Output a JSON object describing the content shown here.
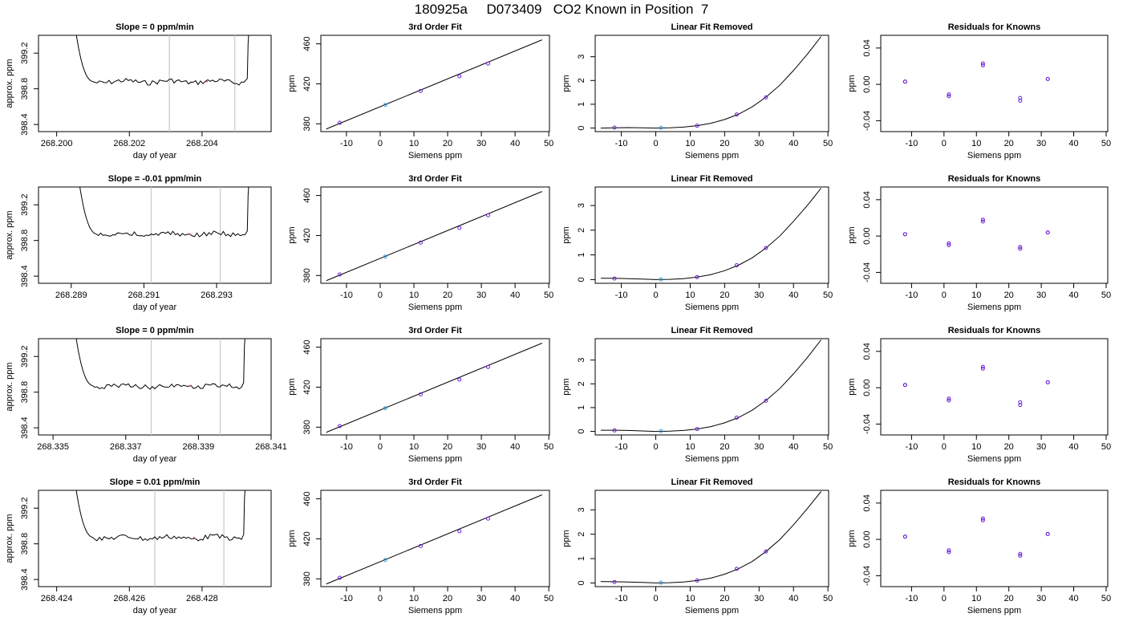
{
  "figure": {
    "title": "180925a     D073409   CO2 Known in Position  7"
  },
  "chart_data": [
    {
      "type": "line",
      "row": 1,
      "col": 1,
      "title": "Slope =  0  ppm/min",
      "xlabel": "day of year",
      "ylabel": "approx. ppm",
      "xlim": [
        268.1995,
        268.2059
      ],
      "ylim": [
        398.32,
        399.4
      ],
      "xticks": [
        "268.200",
        "268.202",
        "268.204"
      ],
      "xtick_values": [
        268.2,
        268.202,
        268.204
      ],
      "yticks": [
        "398.4",
        "398.8",
        "399.2"
      ],
      "ytick_values": [
        398.4,
        398.8,
        399.2
      ],
      "vlines": [
        268.2031,
        268.2049
      ],
      "trace": {
        "x0": 268.201,
        "x1": 268.2052,
        "level": 398.88
      }
    },
    {
      "type": "line",
      "title": "3rd Order Fit",
      "xlabel": "Siemens ppm",
      "ylabel": "ppm",
      "xlim": [
        -17.6,
        50.2
      ],
      "ylim": [
        372.2,
        468.5
      ],
      "xticks": [
        "-10",
        "0",
        "10",
        "20",
        "30",
        "40",
        "50"
      ],
      "xtick_values": [
        -10,
        0,
        10,
        20,
        30,
        40,
        50
      ],
      "yticks": [
        "380",
        "420",
        "460"
      ],
      "ytick_values": [
        380,
        420,
        460
      ],
      "line": {
        "x": [
          -16,
          48
        ],
        "y": [
          374.8,
          464.0
        ]
      },
      "points": {
        "x": [
          -12,
          1.5,
          12,
          23.5,
          32
        ],
        "y": [
          381.0,
          398.9,
          412.8,
          427.6,
          440.2
        ]
      }
    },
    {
      "type": "line",
      "title": "Linear Fit Removed",
      "xlabel": "Siemens ppm",
      "ylabel": "ppm",
      "xlim": [
        -17.6,
        50.2
      ],
      "ylim": [
        -0.15,
        3.9
      ],
      "xticks": [
        "-10",
        "0",
        "10",
        "20",
        "30",
        "40",
        "50"
      ],
      "xtick_values": [
        -10,
        0,
        10,
        20,
        30,
        40,
        50
      ],
      "yticks": [
        "0",
        "1",
        "2",
        "3"
      ],
      "ytick_values": [
        0,
        1,
        2,
        3
      ],
      "curve": {
        "x": [
          -16,
          -12,
          -8,
          -4,
          0,
          4,
          8,
          12,
          16,
          20,
          24,
          28,
          32,
          36,
          40,
          44,
          48
        ],
        "y": [
          0.0,
          0.01,
          0.02,
          0.01,
          0.0,
          0.01,
          0.04,
          0.1,
          0.2,
          0.36,
          0.58,
          0.89,
          1.3,
          1.8,
          2.42,
          3.1,
          3.85
        ]
      },
      "points": {
        "x": [
          -12,
          1.5,
          12,
          23.5,
          32
        ],
        "y": [
          0.02,
          0.01,
          0.1,
          0.57,
          1.29
        ]
      }
    },
    {
      "type": "scatter",
      "title": "Residuals for Knowns",
      "xlabel": "Siemens ppm",
      "ylabel": "ppm",
      "xlim": [
        -19.5,
        50.5
      ],
      "ylim": [
        -0.052,
        0.054
      ],
      "xticks": [
        "-10",
        "0",
        "10",
        "20",
        "30",
        "40",
        "50"
      ],
      "xtick_values": [
        -10,
        0,
        10,
        20,
        30,
        40,
        50
      ],
      "yticks": [
        "-0.04",
        "0.00",
        "0.04"
      ],
      "ytick_values": [
        -0.04,
        0.0,
        0.04
      ],
      "points": {
        "x": [
          -12,
          -12,
          1.5,
          1.5,
          12,
          12,
          23.5,
          23.5,
          32,
          32
        ],
        "y": [
          0.003,
          0.003,
          -0.011,
          -0.013,
          0.021,
          0.023,
          -0.015,
          -0.018,
          0.006,
          0.006
        ]
      }
    },
    {
      "type": "line",
      "row": 2,
      "col": 1,
      "title": "Slope =  -0.01  ppm/min",
      "xlabel": "day of year",
      "ylabel": "approx. ppm",
      "xlim": [
        268.2881,
        268.2945
      ],
      "ylim": [
        398.32,
        399.4
      ],
      "xticks": [
        "268.289",
        "268.291",
        "268.293"
      ],
      "xtick_values": [
        268.289,
        268.291,
        268.293
      ],
      "yticks": [
        "398.4",
        "398.8",
        "399.2"
      ],
      "ytick_values": [
        398.4,
        398.8,
        399.2
      ],
      "vlines": [
        268.2912,
        268.2931
      ],
      "trace": {
        "x0": 268.2897,
        "x1": 268.2938,
        "level": 398.87
      }
    },
    {
      "type": "line",
      "title": "3rd Order Fit",
      "xlabel": "Siemens ppm",
      "ylabel": "ppm",
      "xlim": [
        -17.6,
        50.2
      ],
      "ylim": [
        372.2,
        468.5
      ],
      "xticks": [
        "-10",
        "0",
        "10",
        "20",
        "30",
        "40",
        "50"
      ],
      "xtick_values": [
        -10,
        0,
        10,
        20,
        30,
        40,
        50
      ],
      "yticks": [
        "380",
        "420",
        "460"
      ],
      "ytick_values": [
        380,
        420,
        460
      ],
      "line": {
        "x": [
          -16,
          48
        ],
        "y": [
          374.8,
          464.0
        ]
      },
      "points": {
        "x": [
          -12,
          1.5,
          12,
          23.5,
          32
        ],
        "y": [
          381.0,
          398.9,
          412.8,
          427.6,
          440.2
        ]
      }
    },
    {
      "type": "line",
      "title": "Linear Fit Removed",
      "xlabel": "Siemens ppm",
      "ylabel": "ppm",
      "xlim": [
        -17.6,
        50.2
      ],
      "ylim": [
        -0.15,
        3.75
      ],
      "xticks": [
        "-10",
        "0",
        "10",
        "20",
        "30",
        "40",
        "50"
      ],
      "xtick_values": [
        -10,
        0,
        10,
        20,
        30,
        40,
        50
      ],
      "yticks": [
        "0",
        "1",
        "2",
        "3"
      ],
      "ytick_values": [
        0,
        1,
        2,
        3
      ],
      "curve": {
        "x": [
          -16,
          -12,
          -8,
          -4,
          0,
          4,
          8,
          12,
          16,
          20,
          24,
          28,
          32,
          36,
          40,
          44,
          48
        ],
        "y": [
          0.05,
          0.05,
          0.04,
          0.02,
          0.0,
          0.01,
          0.04,
          0.1,
          0.2,
          0.36,
          0.58,
          0.88,
          1.28,
          1.76,
          2.36,
          3.0,
          3.7
        ]
      },
      "points": {
        "x": [
          -12,
          1.5,
          12,
          23.5,
          32
        ],
        "y": [
          0.04,
          0.01,
          0.1,
          0.58,
          1.28
        ]
      }
    },
    {
      "type": "scatter",
      "title": "Residuals for Knowns",
      "xlabel": "Siemens ppm",
      "ylabel": "ppm",
      "xlim": [
        -19.5,
        50.5
      ],
      "ylim": [
        -0.052,
        0.054
      ],
      "xticks": [
        "-10",
        "0",
        "10",
        "20",
        "30",
        "40",
        "50"
      ],
      "xtick_values": [
        -10,
        0,
        10,
        20,
        30,
        40,
        50
      ],
      "yticks": [
        "-0.04",
        "0.00",
        "0.04"
      ],
      "ytick_values": [
        -0.04,
        0.0,
        0.04
      ],
      "points": {
        "x": [
          -12,
          -12,
          1.5,
          1.5,
          12,
          12,
          23.5,
          23.5,
          32,
          32
        ],
        "y": [
          0.002,
          0.002,
          -0.008,
          -0.01,
          0.016,
          0.018,
          -0.012,
          -0.014,
          0.004,
          0.004
        ]
      }
    },
    {
      "type": "line",
      "row": 3,
      "col": 1,
      "title": "Slope =  0  ppm/min",
      "xlabel": "day of year",
      "ylabel": "approx. ppm",
      "xlim": [
        268.3346,
        268.341
      ],
      "ylim": [
        398.32,
        399.4
      ],
      "xticks": [
        "268.335",
        "268.337",
        "268.339",
        "268.341"
      ],
      "xtick_values": [
        268.335,
        268.337,
        268.339,
        268.341
      ],
      "yticks": [
        "398.4",
        "398.8",
        "399.2"
      ],
      "ytick_values": [
        398.4,
        398.8,
        399.2
      ],
      "vlines": [
        268.3377,
        268.3396
      ],
      "trace": {
        "x0": 268.3361,
        "x1": 268.3402,
        "level": 398.87
      }
    },
    {
      "type": "line",
      "title": "3rd Order Fit",
      "xlabel": "Siemens ppm",
      "ylabel": "ppm",
      "xlim": [
        -17.6,
        50.2
      ],
      "ylim": [
        372.2,
        468.5
      ],
      "xticks": [
        "-10",
        "0",
        "10",
        "20",
        "30",
        "40",
        "50"
      ],
      "xtick_values": [
        -10,
        0,
        10,
        20,
        30,
        40,
        50
      ],
      "yticks": [
        "380",
        "420",
        "460"
      ],
      "ytick_values": [
        380,
        420,
        460
      ],
      "line": {
        "x": [
          -16,
          48
        ],
        "y": [
          374.8,
          464.0
        ]
      },
      "points": {
        "x": [
          -12,
          1.5,
          12,
          23.5,
          32
        ],
        "y": [
          381.0,
          398.9,
          412.8,
          427.6,
          440.2
        ]
      }
    },
    {
      "type": "line",
      "title": "Linear Fit Removed",
      "xlabel": "Siemens ppm",
      "ylabel": "ppm",
      "xlim": [
        -17.6,
        50.2
      ],
      "ylim": [
        -0.15,
        3.9
      ],
      "xticks": [
        "-10",
        "0",
        "10",
        "20",
        "30",
        "40",
        "50"
      ],
      "xtick_values": [
        -10,
        0,
        10,
        20,
        30,
        40,
        50
      ],
      "yticks": [
        "0",
        "1",
        "2",
        "3"
      ],
      "ytick_values": [
        0,
        1,
        2,
        3
      ],
      "curve": {
        "x": [
          -16,
          -12,
          -8,
          -4,
          0,
          4,
          8,
          12,
          16,
          20,
          24,
          28,
          32,
          36,
          40,
          44,
          48
        ],
        "y": [
          0.05,
          0.05,
          0.04,
          0.02,
          0.0,
          0.01,
          0.04,
          0.1,
          0.2,
          0.36,
          0.58,
          0.89,
          1.3,
          1.8,
          2.42,
          3.1,
          3.85
        ]
      },
      "points": {
        "x": [
          -12,
          1.5,
          12,
          23.5,
          32
        ],
        "y": [
          0.04,
          0.01,
          0.1,
          0.58,
          1.29
        ]
      }
    },
    {
      "type": "scatter",
      "title": "Residuals for Knowns",
      "xlabel": "Siemens ppm",
      "ylabel": "ppm",
      "xlim": [
        -19.5,
        50.5
      ],
      "ylim": [
        -0.052,
        0.054
      ],
      "xticks": [
        "-10",
        "0",
        "10",
        "20",
        "30",
        "40",
        "50"
      ],
      "xtick_values": [
        -10,
        0,
        10,
        20,
        30,
        40,
        50
      ],
      "yticks": [
        "-0.04",
        "0.00",
        "0.04"
      ],
      "ytick_values": [
        -0.04,
        0.0,
        0.04
      ],
      "points": {
        "x": [
          -12,
          -12,
          1.5,
          1.5,
          12,
          12,
          23.5,
          23.5,
          32,
          32
        ],
        "y": [
          0.003,
          0.003,
          -0.012,
          -0.014,
          0.021,
          0.023,
          -0.016,
          -0.019,
          0.006,
          0.006
        ]
      }
    },
    {
      "type": "line",
      "row": 4,
      "col": 1,
      "title": "Slope =  0.01  ppm/min",
      "xlabel": "day of year",
      "ylabel": "approx. ppm",
      "xlim": [
        268.4235,
        268.4299
      ],
      "ylim": [
        398.32,
        399.4
      ],
      "xticks": [
        "268.424",
        "268.426",
        "268.428"
      ],
      "xtick_values": [
        268.424,
        268.426,
        268.428
      ],
      "yticks": [
        "398.4",
        "398.8",
        "399.2"
      ],
      "ytick_values": [
        398.4,
        398.8,
        399.2
      ],
      "vlines": [
        268.4267,
        268.4286
      ],
      "trace": {
        "x0": 268.425,
        "x1": 268.4291,
        "level": 398.87
      }
    },
    {
      "type": "line",
      "title": "3rd Order Fit",
      "xlabel": "Siemens ppm",
      "ylabel": "ppm",
      "xlim": [
        -17.6,
        50.2
      ],
      "ylim": [
        372.2,
        468.5
      ],
      "xticks": [
        "-10",
        "0",
        "10",
        "20",
        "30",
        "40",
        "50"
      ],
      "xtick_values": [
        -10,
        0,
        10,
        20,
        30,
        40,
        50
      ],
      "yticks": [
        "380",
        "420",
        "460"
      ],
      "ytick_values": [
        380,
        420,
        460
      ],
      "line": {
        "x": [
          -16,
          48
        ],
        "y": [
          374.8,
          464.0
        ]
      },
      "points": {
        "x": [
          -12,
          1.5,
          12,
          23.5,
          32
        ],
        "y": [
          381.0,
          398.9,
          412.8,
          427.6,
          440.2
        ]
      }
    },
    {
      "type": "line",
      "title": "Linear Fit Removed",
      "xlabel": "Siemens ppm",
      "ylabel": "ppm",
      "xlim": [
        -17.6,
        50.2
      ],
      "ylim": [
        -0.15,
        3.8
      ],
      "xticks": [
        "-10",
        "0",
        "10",
        "20",
        "30",
        "40",
        "50"
      ],
      "xtick_values": [
        -10,
        0,
        10,
        20,
        30,
        40,
        50
      ],
      "yticks": [
        "0",
        "1",
        "2",
        "3"
      ],
      "ytick_values": [
        0,
        1,
        2,
        3
      ],
      "curve": {
        "x": [
          -16,
          -12,
          -8,
          -4,
          0,
          4,
          8,
          12,
          16,
          20,
          24,
          28,
          32,
          36,
          40,
          44,
          48
        ],
        "y": [
          0.06,
          0.05,
          0.04,
          0.02,
          0.0,
          0.01,
          0.04,
          0.1,
          0.2,
          0.36,
          0.58,
          0.88,
          1.29,
          1.78,
          2.38,
          3.05,
          3.75
        ]
      },
      "points": {
        "x": [
          -12,
          1.5,
          12,
          23.5,
          32
        ],
        "y": [
          0.04,
          0.01,
          0.1,
          0.58,
          1.29
        ]
      }
    },
    {
      "type": "scatter",
      "title": "Residuals for Knowns",
      "xlabel": "Siemens ppm",
      "ylabel": "ppm",
      "xlim": [
        -19.5,
        50.5
      ],
      "ylim": [
        -0.052,
        0.054
      ],
      "xticks": [
        "-10",
        "0",
        "10",
        "20",
        "30",
        "40",
        "50"
      ],
      "xtick_values": [
        -10,
        0,
        10,
        20,
        30,
        40,
        50
      ],
      "yticks": [
        "-0.04",
        "0.00",
        "0.04"
      ],
      "ytick_values": [
        -0.04,
        0.0,
        0.04
      ],
      "points": {
        "x": [
          -12,
          -12,
          1.5,
          1.5,
          12,
          12,
          23.5,
          23.5,
          32,
          32
        ],
        "y": [
          0.003,
          0.003,
          -0.012,
          -0.014,
          0.021,
          0.023,
          -0.016,
          -0.018,
          0.006,
          0.006
        ]
      }
    }
  ]
}
